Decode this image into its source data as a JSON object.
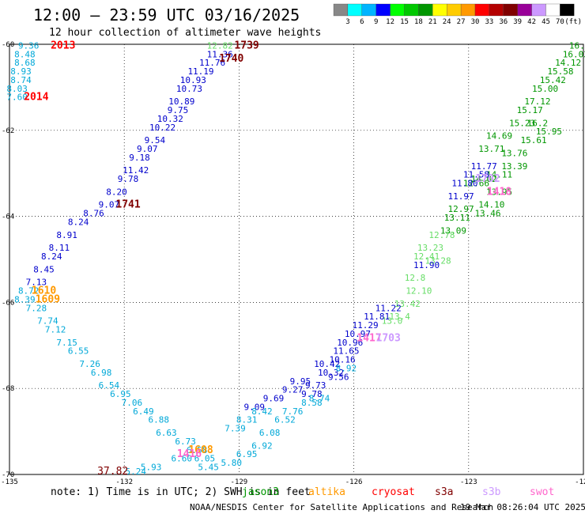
{
  "title": "12:00 – 23:59 UTC 03/16/2025",
  "subtitle": "12 hour collection of altimeter wave heights",
  "note": "note: 1) Time is in UTC; 2) SWH is in feet",
  "footer_left": "NOAA/NESDIS Center for Satellite Applications and Research",
  "footer_right": "19 Mar 08:26:04 UTC 2025",
  "colorbar": {
    "values": [
      "3",
      "6",
      "9",
      "12",
      "15",
      "18",
      "21",
      "24",
      "27",
      "30",
      "33",
      "36",
      "39",
      "42",
      "45",
      "70"
    ],
    "unit": "(ft)",
    "colors": [
      "#888888",
      "#00ffff",
      "#00b4ff",
      "#0000ff",
      "#00ff00",
      "#00c800",
      "#009600",
      "#ffff00",
      "#ffcc00",
      "#ff9900",
      "#ff0000",
      "#b40000",
      "#800000",
      "#990099",
      "#cc99ff",
      "#ffffff",
      "#000000"
    ]
  },
  "missions": [
    {
      "name": "jason3",
      "color": "#009600"
    },
    {
      "name": "altika",
      "color": "#ff9900"
    },
    {
      "name": "cryosat",
      "color": "#ff0000"
    },
    {
      "name": "s3a",
      "color": "#800000"
    },
    {
      "name": "s3b",
      "color": "#cc99ff"
    },
    {
      "name": "swot",
      "color": "#ff66cc"
    }
  ],
  "chart_data": {
    "type": "scatter",
    "title": "12:00 – 23:59 UTC 03/16/2025",
    "x_ticks": [
      "-135",
      "-132",
      "-129",
      "-126",
      "-123",
      "-120"
    ],
    "y_ticks": [
      "-60",
      "-62",
      "-64",
      "-66",
      "-68",
      "-70"
    ],
    "xlim": [
      -135,
      -120
    ],
    "ylim": [
      -70,
      -60
    ],
    "grid": true,
    "series": [
      {
        "name": "jason3",
        "color": "#009600",
        "points": [
          [
            -120.1,
            -60.1,
            "16.0"
          ],
          [
            -120.2,
            -60.3,
            "16.03"
          ],
          [
            -120.4,
            -60.5,
            "14.12"
          ],
          [
            -120.6,
            -60.7,
            "15.58"
          ],
          [
            -120.8,
            -60.9,
            "15.42"
          ],
          [
            -121.0,
            -61.1,
            "15.00"
          ],
          [
            -121.2,
            -61.4,
            "17.12"
          ],
          [
            -121.4,
            -61.6,
            "15.17"
          ],
          [
            -121.6,
            -61.9,
            "15.23"
          ],
          [
            -121.2,
            -61.9,
            "16.2"
          ],
          [
            -120.9,
            -62.1,
            "15.95"
          ],
          [
            -121.3,
            -62.3,
            "15.61"
          ],
          [
            -122.2,
            -62.2,
            "14.69"
          ],
          [
            -122.4,
            -62.5,
            "13.71"
          ],
          [
            -121.8,
            -62.6,
            "13.76"
          ],
          [
            -121.8,
            -62.9,
            "13.39"
          ],
          [
            -122.2,
            -63.1,
            "14.11"
          ],
          [
            -122.6,
            -63.2,
            "14.02"
          ],
          [
            -122.8,
            -63.3,
            "12.66"
          ],
          [
            -122.2,
            -63.5,
            "13.95"
          ],
          [
            -122.4,
            -63.8,
            "14.10"
          ],
          [
            -122.5,
            -64.0,
            "13.46"
          ],
          [
            -123.2,
            -63.9,
            "12.97"
          ],
          [
            -123.3,
            -64.1,
            "13.11"
          ],
          [
            -123.4,
            -64.4,
            "13.09"
          ]
        ]
      },
      {
        "name": "jason3-b",
        "color": "#66dd66",
        "points": [
          [
            -123.7,
            -64.5,
            "12.78"
          ],
          [
            -124.0,
            -64.8,
            "13.23"
          ],
          [
            -123.8,
            -65.1,
            "13.28"
          ],
          [
            -124.1,
            -65.0,
            "12.41"
          ],
          [
            -124.4,
            -65.5,
            "12.8"
          ],
          [
            -124.3,
            -65.8,
            "12.10"
          ],
          [
            -124.6,
            -66.1,
            "13.42"
          ],
          [
            -124.8,
            -66.4,
            "13.4"
          ],
          [
            -125.0,
            -66.5,
            "13.0"
          ]
        ]
      },
      {
        "name": "blue-track",
        "color": "#0000cc",
        "points": [
          [
            -123.2,
            -63.6,
            "11.97"
          ],
          [
            -123.1,
            -63.3,
            "11.80"
          ],
          [
            -122.8,
            -63.1,
            "11.58"
          ],
          [
            -122.6,
            -62.9,
            "11.77"
          ],
          [
            -124.1,
            -65.2,
            "11.90"
          ],
          [
            -125.1,
            -66.2,
            "11.22"
          ],
          [
            -125.4,
            -66.4,
            "11.81"
          ],
          [
            -125.7,
            -66.6,
            "11.29"
          ],
          [
            -125.9,
            -66.8,
            "10.97"
          ],
          [
            -126.1,
            -67.0,
            "10.96"
          ],
          [
            -126.2,
            -67.2,
            "11.65"
          ],
          [
            -126.3,
            -67.4,
            "10.16"
          ],
          [
            -126.7,
            -67.5,
            "10.42"
          ],
          [
            -126.6,
            -67.7,
            "10.32"
          ],
          [
            -126.4,
            -67.8,
            "9.56"
          ],
          [
            -127.4,
            -67.9,
            "9.95"
          ],
          [
            -127.0,
            -68.0,
            "9.73"
          ],
          [
            -127.6,
            -68.1,
            "9.27"
          ],
          [
            -127.1,
            -68.2,
            "9.78"
          ],
          [
            -128.1,
            -68.3,
            "9.69"
          ],
          [
            -128.6,
            -68.5,
            "9.09"
          ]
        ]
      },
      {
        "name": "s3a-track",
        "color": "#0000cc",
        "points": [
          [
            -129.5,
            -60.3,
            "11.36"
          ],
          [
            -129.7,
            -60.5,
            "11.76"
          ],
          [
            -130.0,
            -60.7,
            "11.19"
          ],
          [
            -130.2,
            -60.9,
            "10.93"
          ],
          [
            -130.3,
            -61.1,
            "10.73"
          ],
          [
            -130.5,
            -61.4,
            "10.89"
          ],
          [
            -130.6,
            -61.6,
            "9.75"
          ],
          [
            -130.8,
            -61.8,
            "10.32"
          ],
          [
            -131.0,
            -62.0,
            "10.22"
          ],
          [
            -131.2,
            -62.3,
            "9.54"
          ],
          [
            -131.4,
            -62.5,
            "9.07"
          ],
          [
            -131.6,
            -62.7,
            "9.18"
          ],
          [
            -131.7,
            -63.0,
            "11.42"
          ],
          [
            -131.9,
            -63.2,
            "9.78"
          ],
          [
            -132.2,
            -63.5,
            "8.20"
          ],
          [
            -132.4,
            -63.8,
            "9.07"
          ],
          [
            -132.8,
            -64.0,
            "8.76"
          ],
          [
            -133.2,
            -64.2,
            "8.24"
          ],
          [
            -133.5,
            -64.5,
            "8.91"
          ],
          [
            -133.7,
            -64.8,
            "8.11"
          ],
          [
            -133.9,
            -65.0,
            "8.24"
          ],
          [
            -134.1,
            -65.3,
            "8.45"
          ],
          [
            -134.3,
            -65.6,
            "7.13"
          ]
        ]
      },
      {
        "name": "cyan-track",
        "color": "#00a8d8",
        "points": [
          [
            -134.5,
            -60.1,
            "9.36"
          ],
          [
            -134.6,
            -60.3,
            "8.48"
          ],
          [
            -134.6,
            -60.5,
            "8.68"
          ],
          [
            -134.7,
            -60.7,
            "8.93"
          ],
          [
            -134.7,
            -60.9,
            "8.74"
          ],
          [
            -134.8,
            -61.1,
            "8.03"
          ],
          [
            -134.8,
            -61.3,
            "7.60"
          ],
          [
            -134.5,
            -65.8,
            "8.72"
          ],
          [
            -134.6,
            -66.0,
            "8.39"
          ],
          [
            -134.3,
            -66.2,
            "7.28"
          ],
          [
            -134.0,
            -66.5,
            "7.74"
          ],
          [
            -133.8,
            -66.7,
            "7.12"
          ],
          [
            -133.5,
            -67.0,
            "7.15"
          ],
          [
            -133.2,
            -67.2,
            "6.55"
          ],
          [
            -132.9,
            -67.5,
            "7.26"
          ],
          [
            -132.6,
            -67.7,
            "6.98"
          ],
          [
            -132.4,
            -68.0,
            "6.54"
          ],
          [
            -132.1,
            -68.2,
            "6.95"
          ],
          [
            -131.8,
            -68.4,
            "7.06"
          ],
          [
            -131.5,
            -68.6,
            "6.49"
          ],
          [
            -131.1,
            -68.8,
            "6.88"
          ],
          [
            -130.9,
            -69.1,
            "6.63"
          ],
          [
            -130.4,
            -69.3,
            "6.73"
          ],
          [
            -130.1,
            -69.5,
            "6.58"
          ],
          [
            -130.5,
            -69.7,
            "6.60"
          ],
          [
            -131.3,
            -69.9,
            "5.93"
          ],
          [
            -131.7,
            -70.0,
            "5.24"
          ],
          [
            -129.8,
            -69.9,
            "5.45"
          ],
          [
            -129.2,
            -69.8,
            "5.80"
          ],
          [
            -129.9,
            -69.7,
            "6.05"
          ],
          [
            -128.8,
            -69.6,
            "6.95"
          ],
          [
            -128.4,
            -69.4,
            "6.92"
          ],
          [
            -128.2,
            -69.1,
            "6.08"
          ],
          [
            -127.8,
            -68.8,
            "6.52"
          ],
          [
            -127.6,
            -68.6,
            "7.76"
          ],
          [
            -127.1,
            -68.4,
            "8.58"
          ],
          [
            -126.9,
            -68.3,
            "8.74"
          ],
          [
            -129.1,
            -69.0,
            "7.39"
          ],
          [
            -128.8,
            -68.8,
            "8.31"
          ],
          [
            -128.4,
            -68.6,
            "8.42"
          ],
          [
            -126.2,
            -67.6,
            "8.92"
          ]
        ]
      },
      {
        "name": "cryosat",
        "color": "#ff0000",
        "points": [
          [
            -133.6,
            -60.1,
            "2013"
          ],
          [
            -134.3,
            -61.3,
            "2014"
          ]
        ]
      },
      {
        "name": "s3a",
        "color": "#800000",
        "points": [
          [
            -128.8,
            -60.1,
            "1739"
          ],
          [
            -129.2,
            -60.4,
            "1740"
          ],
          [
            -131.9,
            -63.8,
            "1741"
          ],
          [
            -132.3,
            -70.0,
            "37.82"
          ]
        ]
      },
      {
        "name": "altika",
        "color": "#ff9900",
        "points": [
          [
            -134.1,
            -65.8,
            "1610"
          ],
          [
            -134.0,
            -66.0,
            "1609"
          ],
          [
            -130.0,
            -69.5,
            "1608"
          ]
        ]
      },
      {
        "name": "swot",
        "color": "#ff66cc",
        "points": [
          [
            -122.2,
            -63.5,
            "1418"
          ],
          [
            -125.6,
            -66.9,
            "1417"
          ],
          [
            -130.3,
            -69.6,
            "1416"
          ]
        ]
      },
      {
        "name": "s3b",
        "color": "#cc99ff",
        "points": [
          [
            -122.5,
            -63.2,
            "1702"
          ],
          [
            -125.1,
            -66.9,
            "1703"
          ]
        ]
      },
      {
        "name": "green-top",
        "color": "#66dd66",
        "points": [
          [
            -129.5,
            -60.1,
            "12.82"
          ]
        ]
      }
    ]
  }
}
